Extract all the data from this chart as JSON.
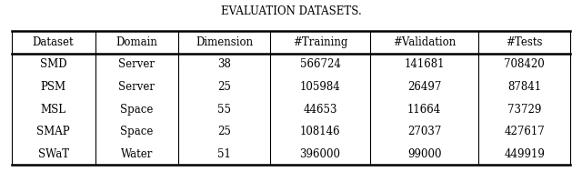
{
  "title": "Evaluation Datasets.",
  "columns": [
    "Dataset",
    "Domain",
    "Dimension",
    "#Training",
    "#Validation",
    "#Tests"
  ],
  "rows": [
    [
      "SMD",
      "Server",
      "38",
      "566724",
      "141681",
      "708420"
    ],
    [
      "PSM",
      "Server",
      "25",
      "105984",
      "26497",
      "87841"
    ],
    [
      "MSL",
      "Space",
      "55",
      "44653",
      "11664",
      "73729"
    ],
    [
      "SMAP",
      "Space",
      "25",
      "108146",
      "27037",
      "427617"
    ],
    [
      "SWaT",
      "Water",
      "51",
      "396000",
      "99000",
      "449919"
    ]
  ],
  "background_color": "#ffffff",
  "text_color": "#000000",
  "title_fontsize": 8.5,
  "cell_fontsize": 8.5,
  "thick_lw": 1.8,
  "thin_lw": 0.8
}
